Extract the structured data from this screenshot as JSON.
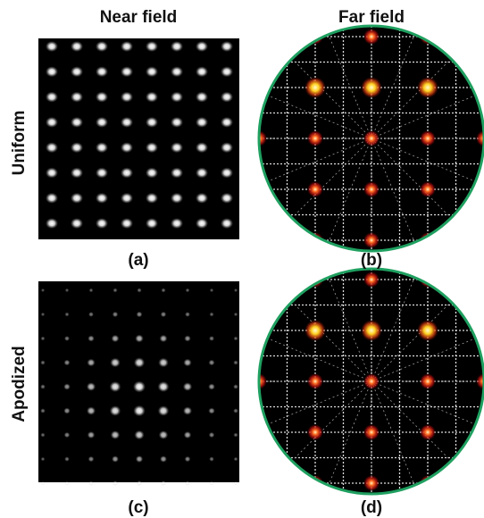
{
  "headers": [
    "Near field",
    "Far field"
  ],
  "rows": [
    "Uniform",
    "Apodized"
  ],
  "panels": [
    "(a)",
    "(b)",
    "(c)",
    "(d)"
  ]
}
